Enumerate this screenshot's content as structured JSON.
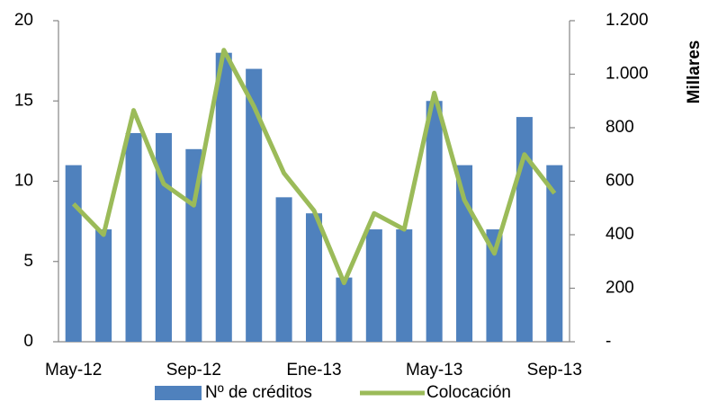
{
  "chart_data": {
    "type": "bar_line",
    "categories": [
      "May-12",
      null,
      null,
      null,
      "Sep-12",
      null,
      null,
      null,
      "Ene-13",
      null,
      null,
      null,
      "May-13",
      null,
      null,
      null,
      "Sep-13"
    ],
    "series": [
      {
        "name": "Nº de créditos",
        "color": "#4f81bd",
        "type": "bar",
        "values": [
          11,
          7,
          13,
          13,
          12,
          18,
          17,
          9,
          8,
          4,
          7,
          7,
          15,
          11,
          7,
          14,
          11
        ]
      },
      {
        "name": "Colocación",
        "color": "#9bbb59",
        "type": "line",
        "axis": "y2",
        "values": [
          515,
          400,
          865,
          590,
          510,
          1090,
          880,
          630,
          490,
          220,
          480,
          420,
          930,
          530,
          330,
          700,
          555
        ]
      }
    ],
    "ylim": [
      0,
      20
    ],
    "yticks": [
      0,
      5,
      10,
      15,
      20
    ],
    "y2lim": [
      0,
      1200
    ],
    "y2ticks": [
      {
        "value": 0,
        "label": "-"
      },
      200,
      400,
      600,
      800,
      {
        "value": 1000,
        "label": "1.000"
      },
      {
        "value": 1200,
        "label": "1.200"
      }
    ],
    "y2label": "Millares",
    "legend": "bottom"
  }
}
